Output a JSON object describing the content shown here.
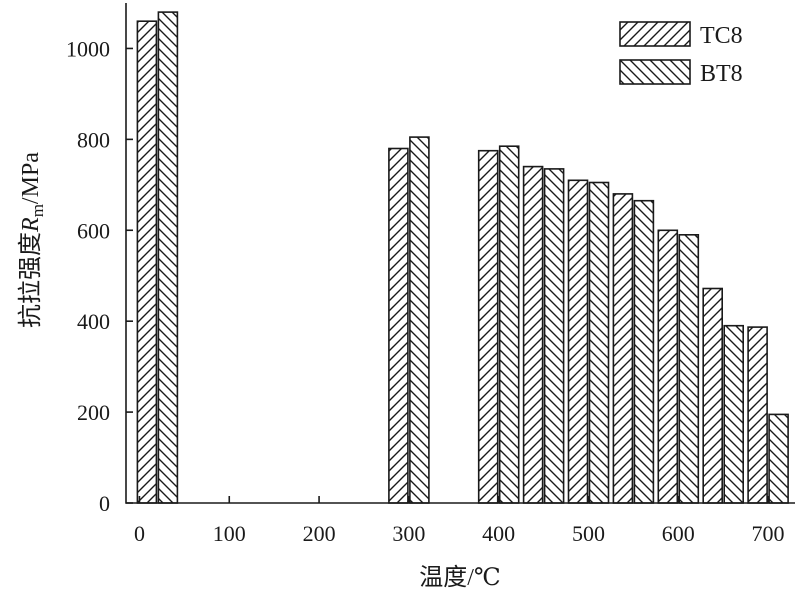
{
  "chart_data": {
    "type": "bar",
    "title": "",
    "xlabel": "温度/℃",
    "ylabel_parts": [
      "抗拉强度",
      "R",
      "m",
      "/MPa"
    ],
    "xlim": [
      -15,
      730
    ],
    "ylim": [
      0,
      1100
    ],
    "x_ticks": [
      0,
      100,
      200,
      300,
      400,
      500,
      600,
      700
    ],
    "y_ticks": [
      0,
      200,
      400,
      600,
      800,
      1000
    ],
    "grid": false,
    "legend_position": "top-right",
    "pattern": {
      "TC8": "forward-hatch",
      "BT8": "back-hatch"
    },
    "colors": {
      "edge": "#1a1a1a",
      "fill": "#ffffff"
    },
    "series": [
      {
        "name": "TC8",
        "x": [
          20,
          300,
          400,
          450,
          500,
          550,
          600,
          650,
          700
        ],
        "values": [
          1060,
          780,
          775,
          740,
          710,
          680,
          600,
          472,
          387
        ]
      },
      {
        "name": "BT8",
        "x": [
          20,
          300,
          400,
          450,
          500,
          550,
          600,
          650,
          700
        ],
        "values": [
          1080,
          805,
          785,
          735,
          705,
          665,
          590,
          390,
          195
        ]
      }
    ]
  }
}
